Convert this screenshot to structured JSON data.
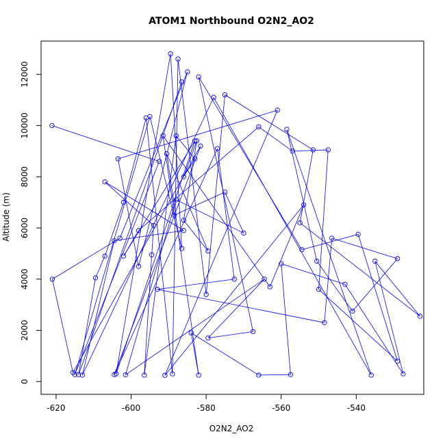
{
  "chart_data": {
    "type": "line",
    "title": "ATOM1 Northbound O2N2_AO2",
    "xlabel": "O2N2_AO2",
    "ylabel": "Altitude (m)",
    "xlim": [
      -624,
      -522
    ],
    "ylim": [
      -500,
      13300
    ],
    "xticks": [
      -620,
      -600,
      -580,
      -560,
      -540
    ],
    "yticks": [
      0,
      2000,
      4000,
      6000,
      8000,
      10000,
      12000
    ],
    "grid": false,
    "legend": "none",
    "series_style": "lines with open circle markers",
    "color": "#0000ff",
    "points": [
      [
        -621.1,
        10000
      ],
      [
        -592.5,
        8600
      ],
      [
        -615.0,
        270
      ],
      [
        -595.0,
        10350
      ],
      [
        -586.5,
        5200
      ],
      [
        -589.5,
        12800
      ],
      [
        -604.0,
        300
      ],
      [
        -583.0,
        9400
      ],
      [
        -602.0,
        4900
      ],
      [
        -598.0,
        5900
      ],
      [
        -566.0,
        9950
      ],
      [
        -557.0,
        9000
      ],
      [
        -547.5,
        9050
      ],
      [
        -550.0,
        3600
      ],
      [
        -529.0,
        800
      ],
      [
        -539.5,
        5750
      ],
      [
        -554.5,
        5150
      ],
      [
        -582.0,
        11900
      ],
      [
        -567.5,
        1950
      ],
      [
        -579.5,
        1700
      ],
      [
        -564.5,
        4000
      ],
      [
        -601.5,
        260
      ],
      [
        -588.0,
        7100
      ],
      [
        -570.0,
        5800
      ],
      [
        -575.0,
        7400
      ],
      [
        -588.5,
        6500
      ],
      [
        -591.5,
        9600
      ],
      [
        -563.0,
        3700
      ],
      [
        -554.0,
        6900
      ],
      [
        -591.0,
        240
      ],
      [
        -561.0,
        10600
      ],
      [
        -603.5,
        8700
      ],
      [
        -598.0,
        4500
      ],
      [
        -585.0,
        12100
      ],
      [
        -603.0,
        5600
      ],
      [
        -621.0,
        4000
      ],
      [
        -615.5,
        350
      ],
      [
        -581.5,
        9200
      ],
      [
        -604.5,
        270
      ],
      [
        -577.0,
        9100
      ],
      [
        -572.5,
        4000
      ],
      [
        -593.0,
        3600
      ],
      [
        -548.5,
        2300
      ],
      [
        -546.5,
        5600
      ],
      [
        -529.0,
        4800
      ],
      [
        -541.0,
        2750
      ],
      [
        -550.5,
        4700
      ],
      [
        -558.5,
        9850
      ],
      [
        -536.0,
        250
      ],
      [
        -578.0,
        11100
      ],
      [
        -613.0,
        250
      ],
      [
        -604.5,
        5500
      ],
      [
        -586.0,
        5900
      ],
      [
        -607.0,
        7800
      ],
      [
        -594.0,
        6100
      ],
      [
        -594.5,
        4950
      ],
      [
        -596.5,
        250
      ],
      [
        -588.0,
        9600
      ],
      [
        -583.0,
        8700
      ],
      [
        -586.0,
        8000
      ],
      [
        -582.5,
        9400
      ],
      [
        -586.0,
        6300
      ],
      [
        -579.5,
        5100
      ],
      [
        -590.5,
        8900
      ],
      [
        -582.0,
        250
      ],
      [
        -584.0,
        1900
      ],
      [
        -566.0,
        250
      ],
      [
        -557.5,
        270
      ],
      [
        -560.0,
        4600
      ],
      [
        -543.0,
        3800
      ],
      [
        -527.5,
        300
      ],
      [
        -535.0,
        4700
      ],
      [
        -523.0,
        2550
      ],
      [
        -555.0,
        6200
      ],
      [
        -551.5,
        9050
      ],
      [
        -575.0,
        11200
      ],
      [
        -580.0,
        3400
      ],
      [
        -587.5,
        12600
      ],
      [
        -589.0,
        300
      ],
      [
        -596.0,
        10300
      ],
      [
        -602.0,
        7000
      ],
      [
        -607.0,
        4900
      ],
      [
        -609.5,
        4050
      ],
      [
        -614.0,
        270
      ],
      [
        -586.5,
        11700
      ]
    ]
  }
}
